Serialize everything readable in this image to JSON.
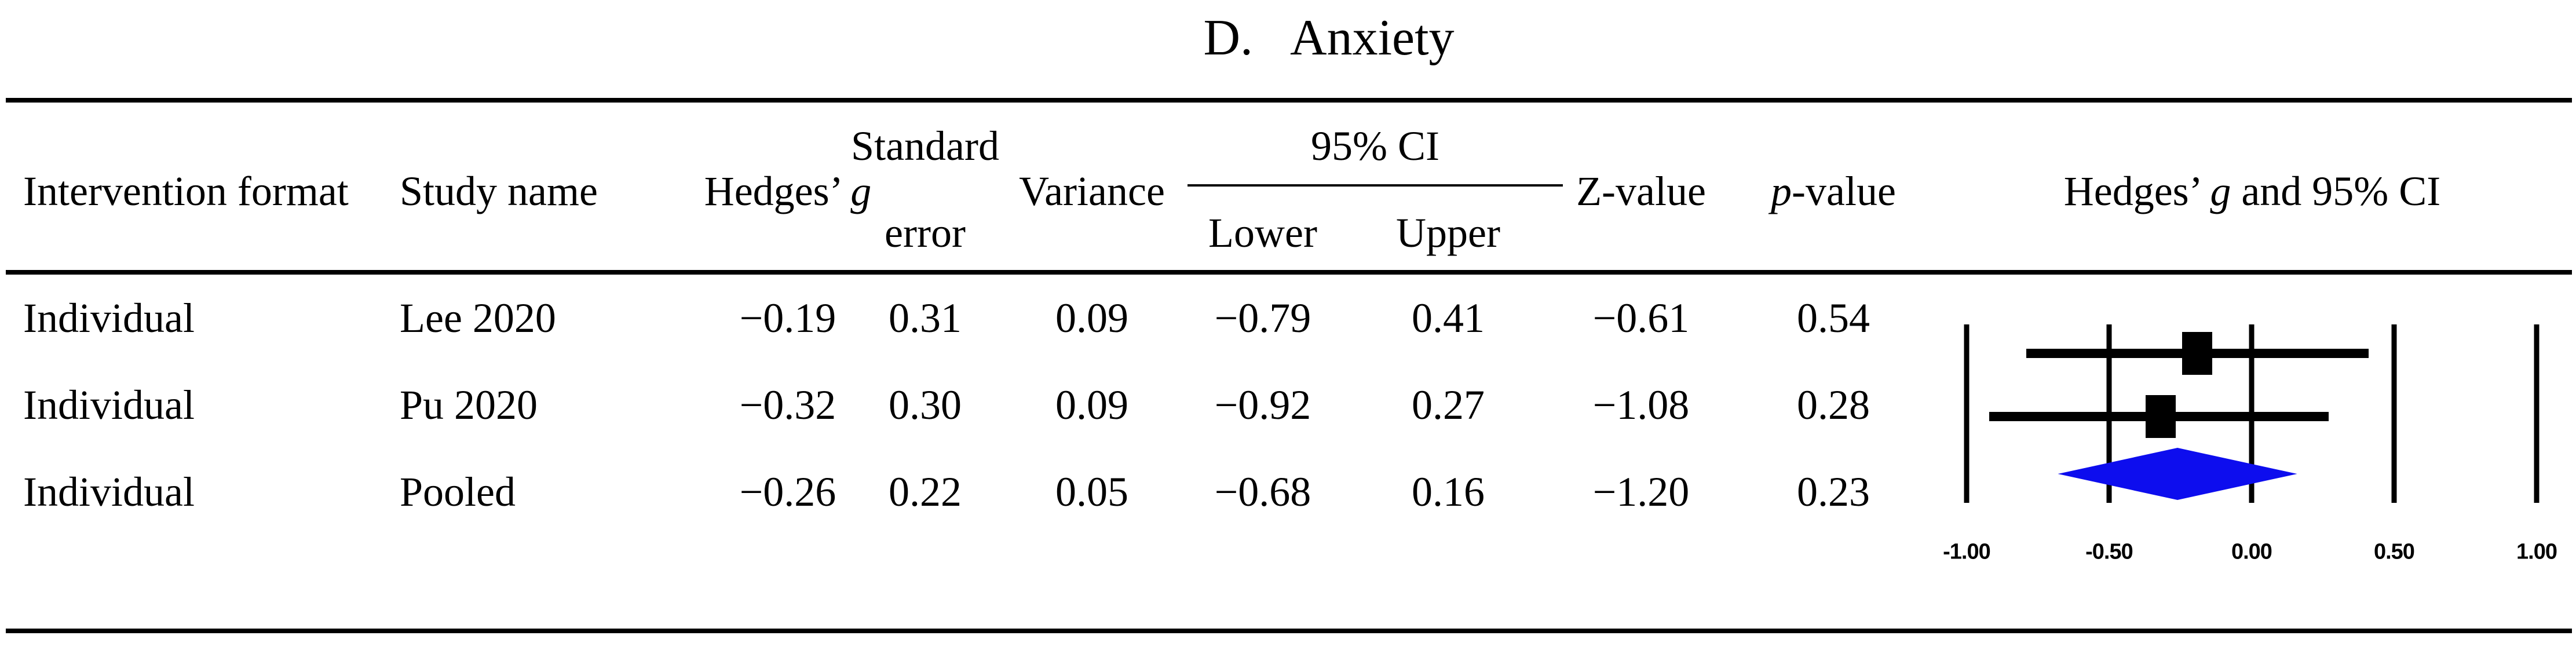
{
  "title": {
    "prefix": "D.",
    "text": "Anxiety"
  },
  "header": {
    "intervention": "Intervention format",
    "study": "Study name",
    "hedges_prefix": "Hedges’",
    "hedges_g": "g",
    "standard_line1": "Standard",
    "standard_line2": "error",
    "variance": "Variance",
    "ci_span": "95% CI",
    "ci_lower": "Lower",
    "ci_upper": "Upper",
    "z": "Z-value",
    "p_italic": "p",
    "p_suffix": "-value",
    "plot_prefix": "Hedges’",
    "plot_g": "g",
    "plot_suffix": "and 95% CI"
  },
  "rows": [
    {
      "format": "Individual",
      "study": "Lee 2020",
      "g": "−0.19",
      "se": "0.31",
      "variance": "0.09",
      "lower": "−0.79",
      "upper": "0.41",
      "z": "−0.61",
      "p": "0.54"
    },
    {
      "format": "Individual",
      "study": "Pu 2020",
      "g": "−0.32",
      "se": "0.30",
      "variance": "0.09",
      "lower": "−0.92",
      "upper": "0.27",
      "z": "−1.08",
      "p": "0.28"
    },
    {
      "format": "Individual",
      "study": "Pooled",
      "g": "−0.26",
      "se": "0.22",
      "variance": "0.05",
      "lower": "−0.68",
      "upper": "0.16",
      "z": "−1.20",
      "p": "0.23"
    }
  ],
  "chart_data": {
    "type": "scatter",
    "subtype": "forest-plot",
    "title": "Hedges' g and 95% CI",
    "xlabel": "Hedges' g",
    "xlim": [
      -1.132,
      1.124
    ],
    "x_ticks": [
      -1.0,
      -0.5,
      0.0,
      0.5,
      1.0
    ],
    "x_tick_labels": [
      "-1.00",
      "-0.50",
      "0.00",
      "0.50",
      "1.00"
    ],
    "grid": true,
    "studies": [
      {
        "name": "Lee 2020",
        "g": -0.19,
        "ci_lower": -0.79,
        "ci_upper": 0.41,
        "marker": "square"
      },
      {
        "name": "Pu 2020",
        "g": -0.32,
        "ci_lower": -0.92,
        "ci_upper": 0.27,
        "marker": "square"
      },
      {
        "name": "Pooled",
        "g": -0.26,
        "ci_lower": -0.68,
        "ci_upper": 0.16,
        "marker": "diamond"
      }
    ],
    "marker_color": "#000000",
    "diamond_color": "#0d0dee"
  }
}
